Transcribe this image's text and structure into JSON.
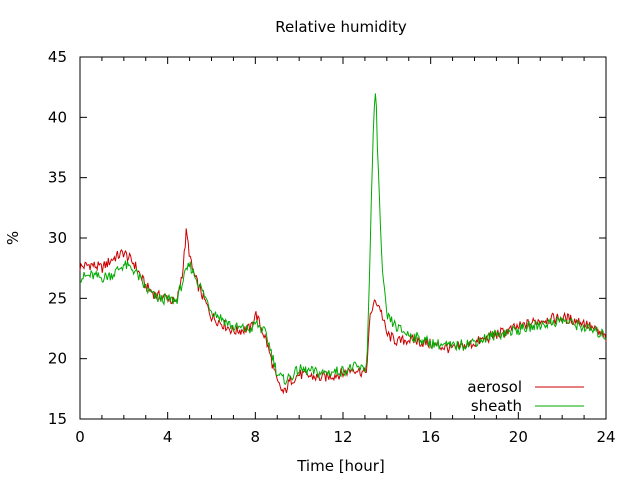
{
  "chart_data": {
    "type": "line",
    "title": "Relative humidity",
    "xlabel": "Time [hour]",
    "ylabel": "%",
    "xlim": [
      0,
      24
    ],
    "ylim": [
      15,
      45
    ],
    "xticks": [
      0,
      4,
      8,
      12,
      16,
      20,
      24
    ],
    "yticks": [
      15,
      20,
      25,
      30,
      35,
      40,
      45
    ],
    "legend_position": "bottom-right",
    "grid": false,
    "series": [
      {
        "name": "aerosol",
        "color": "#cc0000",
        "x": [
          0,
          0.5,
          1.0,
          1.5,
          2.0,
          2.5,
          3.0,
          3.5,
          4.0,
          4.4,
          4.7,
          4.85,
          5.1,
          5.4,
          6.0,
          7.0,
          7.8,
          8.0,
          8.5,
          9.0,
          9.3,
          9.6,
          10.0,
          11.0,
          12.0,
          12.5,
          13.0,
          13.1,
          13.25,
          13.5,
          13.7,
          14.0,
          14.5,
          15.0,
          16.0,
          17.0,
          18.0,
          19.0,
          20.0,
          21.0,
          22.0,
          23.0,
          24.0
        ],
        "y": [
          27.6,
          27.8,
          27.5,
          28.3,
          28.8,
          27.8,
          26.0,
          25.2,
          25.1,
          24.5,
          27.5,
          30.5,
          27.5,
          26.0,
          23.5,
          22.3,
          22.5,
          23.8,
          21.5,
          18.0,
          17.1,
          18.2,
          18.7,
          18.4,
          18.8,
          19.2,
          18.8,
          19.5,
          23.8,
          24.8,
          24.2,
          22.0,
          21.4,
          21.6,
          21.2,
          20.8,
          21.3,
          22.0,
          22.6,
          23.2,
          23.4,
          23.0,
          21.7
        ]
      },
      {
        "name": "sheath",
        "color": "#00aa00",
        "x": [
          0,
          0.5,
          1.0,
          1.5,
          2.0,
          2.5,
          3.0,
          3.5,
          4.0,
          4.4,
          4.7,
          5.0,
          5.4,
          6.0,
          7.0,
          7.8,
          8.0,
          8.5,
          9.0,
          9.3,
          9.6,
          10.0,
          11.0,
          12.0,
          12.5,
          13.0,
          13.1,
          13.25,
          13.4,
          13.5,
          13.6,
          13.8,
          14.0,
          14.5,
          15.0,
          16.0,
          17.0,
          18.0,
          19.0,
          20.0,
          21.0,
          22.0,
          23.0,
          24.0
        ],
        "y": [
          26.7,
          26.9,
          26.7,
          27.0,
          27.8,
          27.3,
          25.8,
          25.0,
          24.9,
          24.8,
          26.5,
          27.8,
          26.3,
          24.0,
          22.6,
          22.4,
          23.0,
          22.0,
          18.8,
          18.2,
          18.5,
          19.1,
          18.8,
          19.0,
          19.3,
          19.1,
          20.0,
          30.0,
          40.0,
          42.0,
          36.0,
          27.0,
          23.5,
          22.5,
          22.0,
          21.3,
          21.0,
          21.4,
          22.0,
          22.4,
          22.8,
          23.2,
          22.6,
          21.9
        ]
      }
    ]
  }
}
